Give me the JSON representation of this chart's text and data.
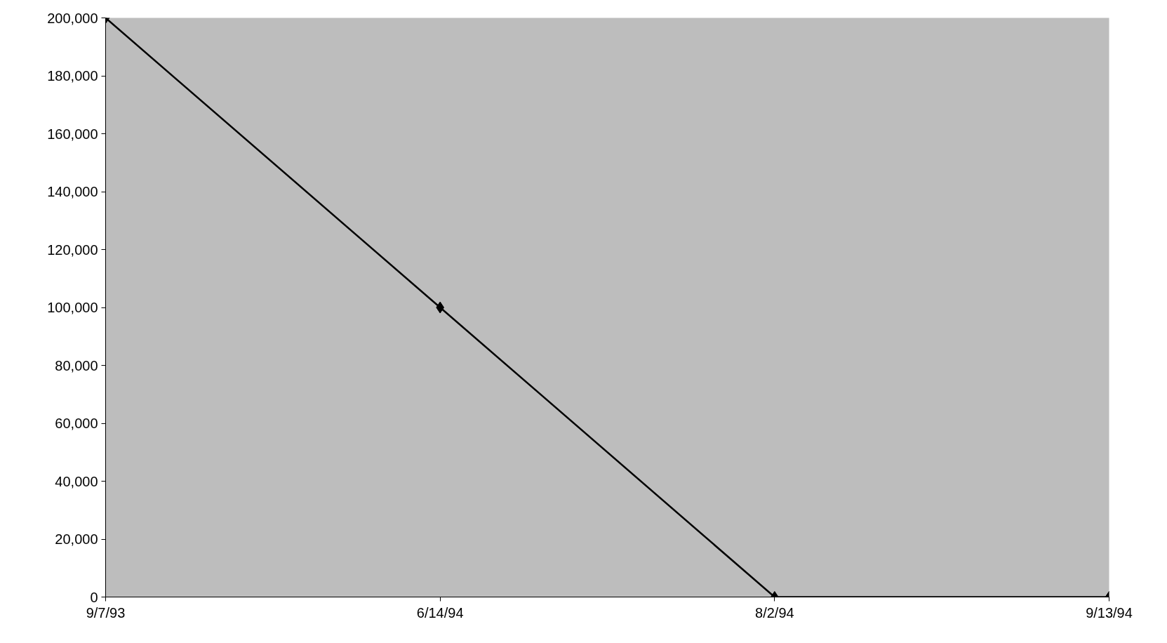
{
  "chart_data": {
    "type": "line",
    "categories": [
      "9/7/93",
      "6/14/94",
      "8/2/94",
      "9/13/94"
    ],
    "series": [
      {
        "color": "#000000",
        "values": [
          200000,
          100000,
          0,
          0
        ]
      }
    ],
    "ylim": [
      0,
      200000
    ],
    "yticks": [
      {
        "value": 0,
        "label": "0"
      },
      {
        "value": 20000,
        "label": "20,000"
      },
      {
        "value": 40000,
        "label": "40,000"
      },
      {
        "value": 60000,
        "label": "60,000"
      },
      {
        "value": 80000,
        "label": "80,000"
      },
      {
        "value": 100000,
        "label": "100,000"
      },
      {
        "value": 120000,
        "label": "120,000"
      },
      {
        "value": 140000,
        "label": "140,000"
      },
      {
        "value": 160000,
        "label": "160,000"
      },
      {
        "value": 180000,
        "label": "180,000"
      },
      {
        "value": 200000,
        "label": "200,000"
      }
    ],
    "marker": "diamond",
    "line_style": "solid",
    "grid": false
  }
}
